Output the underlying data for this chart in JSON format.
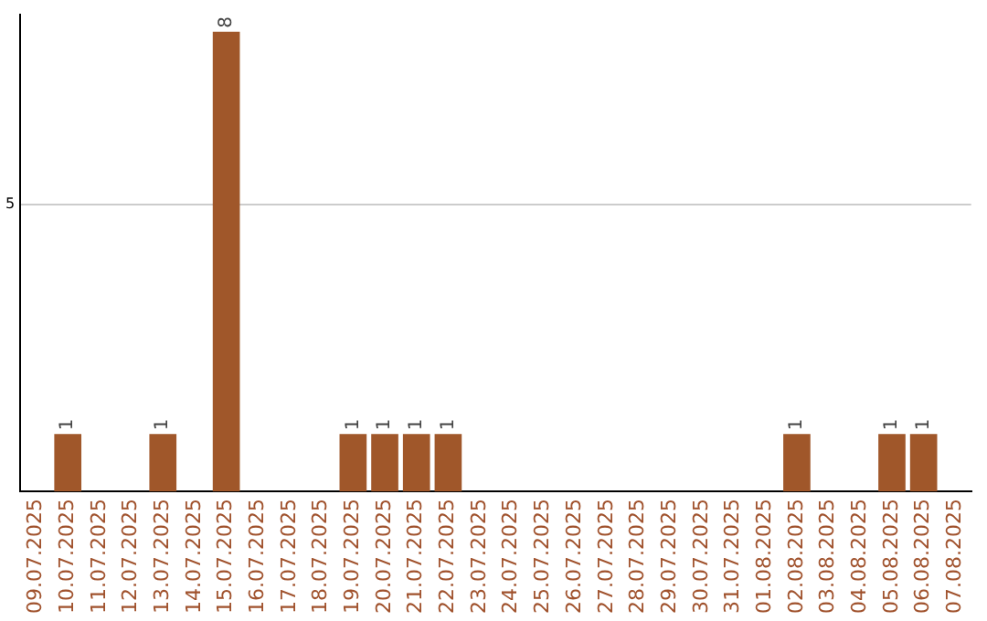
{
  "chart_data": {
    "type": "bar",
    "categories": [
      "09.07.2025",
      "10.07.2025",
      "11.07.2025",
      "12.07.2025",
      "13.07.2025",
      "14.07.2025",
      "15.07.2025",
      "16.07.2025",
      "17.07.2025",
      "18.07.2025",
      "19.07.2025",
      "20.07.2025",
      "21.07.2025",
      "22.07.2025",
      "23.07.2025",
      "24.07.2025",
      "25.07.2025",
      "26.07.2025",
      "27.07.2025",
      "28.07.2025",
      "29.07.2025",
      "30.07.2025",
      "31.07.2025",
      "01.08.2025",
      "02.08.2025",
      "03.08.2025",
      "04.08.2025",
      "05.08.2025",
      "06.08.2025",
      "07.08.2025"
    ],
    "values": [
      0,
      1,
      0,
      0,
      1,
      0,
      8,
      0,
      0,
      0,
      1,
      1,
      1,
      1,
      0,
      0,
      0,
      0,
      0,
      0,
      0,
      0,
      0,
      0,
      1,
      0,
      0,
      1,
      1,
      0
    ],
    "value_labels": [
      null,
      "1",
      null,
      null,
      "1",
      null,
      "8",
      null,
      null,
      null,
      "1",
      "1",
      "1",
      "1",
      null,
      null,
      null,
      null,
      null,
      null,
      null,
      null,
      null,
      null,
      "1",
      null,
      null,
      "1",
      "1",
      null
    ],
    "color": "#a0572a",
    "ylim": [
      0,
      8.3
    ],
    "yticks": [
      5
    ],
    "grid": "y"
  }
}
